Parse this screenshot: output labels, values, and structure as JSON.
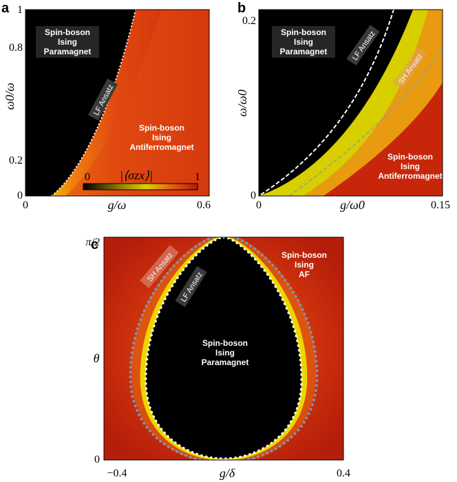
{
  "chart_data": [
    {
      "panel": "a",
      "type": "heatmap",
      "xlabel": "g/ω",
      "ylabel": "ω0/ω",
      "xlim": [
        0,
        0.6
      ],
      "ylim": [
        0,
        1
      ],
      "xtick_labels": [
        "0",
        "0.6"
      ],
      "ytick_labels": [
        "0",
        "0.2",
        "0.8",
        "1"
      ],
      "colorbar": {
        "label": "|⟨σzx⟩|",
        "min_label": "0",
        "max_label": "1",
        "min": 0,
        "max": 1
      },
      "regions": [
        {
          "label_lines": [
            "Spin-boson",
            "Ising",
            "Paramagnet"
          ]
        },
        {
          "label_lines": [
            "Spin-boson",
            "Ising",
            "Antiferromagnet"
          ]
        }
      ],
      "curves": [
        {
          "name": "LF Ansatz",
          "style": "white dotted"
        }
      ]
    },
    {
      "panel": "b",
      "type": "heatmap",
      "xlabel": "g/ω0",
      "ylabel": "ω/ω0",
      "xlim": [
        0,
        0.15
      ],
      "ylim": [
        0,
        0.2
      ],
      "xtick_labels": [
        "0",
        "0.15"
      ],
      "ytick_labels": [
        "0",
        "0.2"
      ],
      "regions": [
        {
          "label_lines": [
            "Spin-boson",
            "Ising",
            "Paramagnet"
          ]
        },
        {
          "label_lines": [
            "Spin-boson",
            "Ising",
            "Antiferromagnet"
          ]
        }
      ],
      "curves": [
        {
          "name": "LF Ansatz",
          "style": "white dashed"
        },
        {
          "name": "SH Ansatz",
          "style": "grey dashed"
        }
      ]
    },
    {
      "panel": "c",
      "type": "heatmap",
      "xlabel": "g/δ",
      "ylabel": "θ",
      "xlim": [
        -0.4,
        0.4
      ],
      "ylim": [
        0,
        1.5708
      ],
      "xtick_labels": [
        "−0.4",
        "0.4"
      ],
      "ytick_labels": [
        "0",
        "π/2"
      ],
      "regions": [
        {
          "label_lines": [
            "Spin-boson",
            "Ising",
            "Paramagnet"
          ]
        },
        {
          "label_lines": [
            "Spin-boson",
            "Ising",
            "AF"
          ]
        }
      ],
      "curves": [
        {
          "name": "LF Ansatz",
          "style": "white dots"
        },
        {
          "name": "SH Ansatz",
          "style": "grey dots"
        }
      ]
    }
  ]
}
